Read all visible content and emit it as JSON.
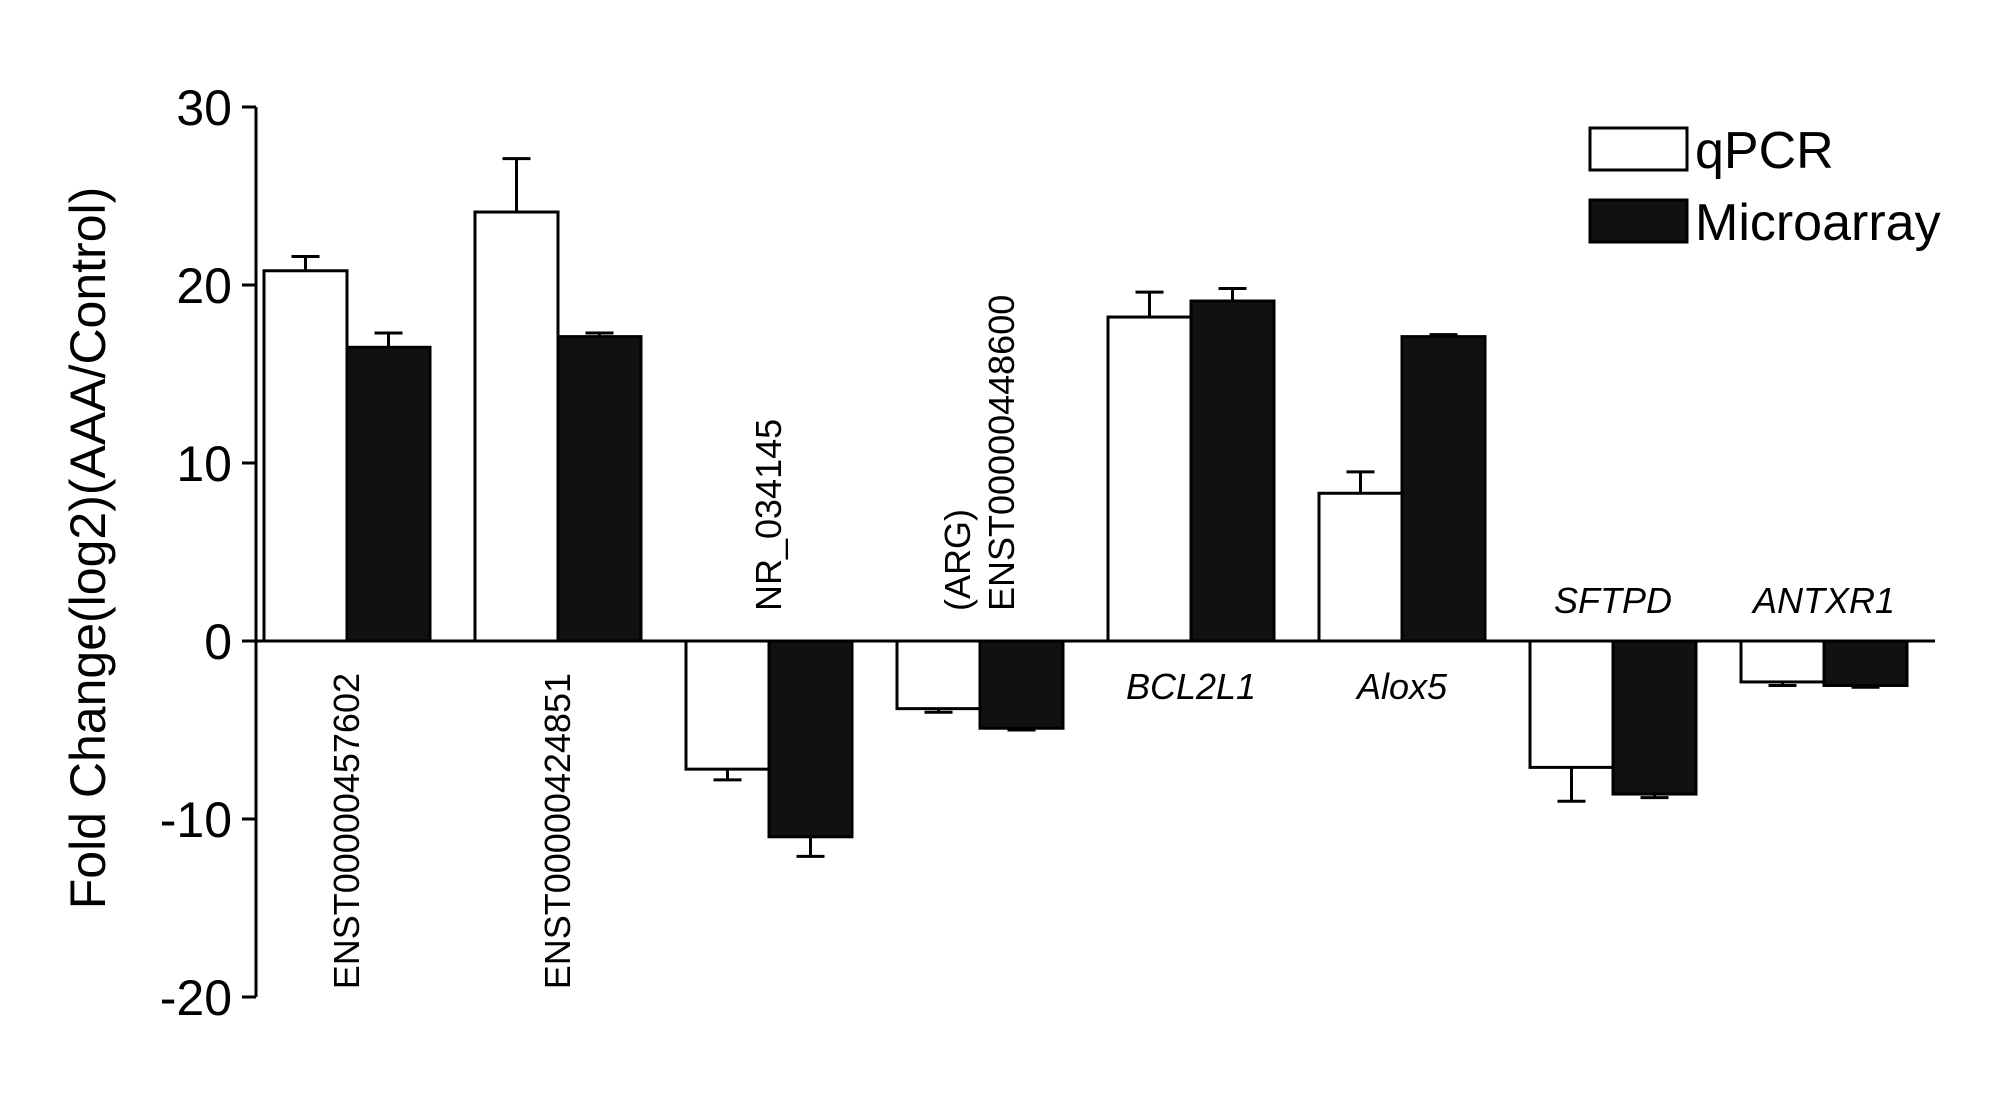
{
  "chart_data": {
    "type": "bar",
    "ylabel": "Fold Change(log2)(AAA/Control)",
    "ylim": [
      -20,
      30
    ],
    "yticks": [
      "30",
      "20",
      "10",
      "0",
      "-10",
      "-20"
    ],
    "legend_position": "top-right",
    "grid": false,
    "categories": [
      "ENST00000457602",
      "ENST00000424851",
      "NR_034145",
      "(ARG)\nENST00000448600",
      "BCL2L1",
      "Alox5",
      "SFTPD",
      "ANTXR1"
    ],
    "category_labels": [
      {
        "lines": [
          "ENST00000457602"
        ],
        "rotated": true,
        "italic": false
      },
      {
        "lines": [
          "ENST00000424851"
        ],
        "rotated": true,
        "italic": false
      },
      {
        "lines": [
          "NR_034145"
        ],
        "rotated": true,
        "italic": false
      },
      {
        "lines": [
          "(ARG)",
          "ENST00000448600"
        ],
        "rotated": true,
        "italic": false
      },
      {
        "lines": [
          "BCL2L1"
        ],
        "rotated": false,
        "italic": true
      },
      {
        "lines": [
          "Alox5"
        ],
        "rotated": false,
        "italic": true
      },
      {
        "lines": [
          "SFTPD"
        ],
        "rotated": false,
        "italic": true
      },
      {
        "lines": [
          "ANTXR1"
        ],
        "rotated": false,
        "italic": true
      }
    ],
    "series": [
      {
        "name": "qPCR",
        "color": "#ffffff",
        "values": [
          20.8,
          24.1,
          -7.2,
          -3.8,
          18.2,
          8.3,
          -7.1,
          -2.3
        ],
        "errors": [
          0.8,
          3.0,
          0.6,
          0.2,
          1.4,
          1.2,
          1.9,
          0.2
        ]
      },
      {
        "name": "Microarray",
        "color": "#111111",
        "values": [
          16.5,
          17.1,
          -11.0,
          -4.9,
          19.1,
          17.1,
          -8.6,
          -2.5
        ],
        "errors": [
          0.8,
          0.2,
          1.1,
          0.1,
          0.7,
          0.0,
          0.2,
          0.1
        ]
      }
    ]
  }
}
